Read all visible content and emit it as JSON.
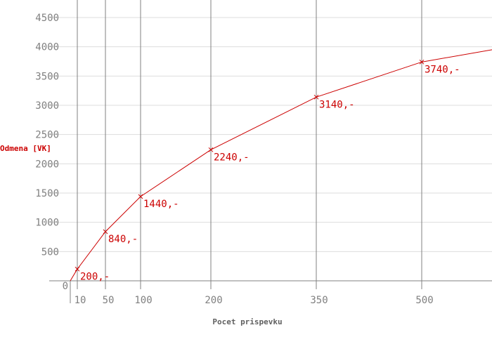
{
  "chart_data": {
    "type": "line",
    "title": "",
    "xlabel": "Pocet prispevku",
    "ylabel": "Odmena [VK]",
    "x_ticks": [
      "10",
      "50",
      "100",
      "200",
      "350",
      "500"
    ],
    "y_ticks": [
      "0",
      "500",
      "1000",
      "1500",
      "2000",
      "2500",
      "3000",
      "3500",
      "4000",
      "4500"
    ],
    "xlim": [
      0,
      600
    ],
    "ylim": [
      0,
      4800
    ],
    "grid": true,
    "series": [
      {
        "x": [
          0,
          10,
          50,
          100,
          200,
          350,
          500,
          600
        ],
        "y": [
          0,
          200,
          840,
          1440,
          2240,
          3140,
          3740,
          3950
        ],
        "color": "#cc0000"
      }
    ],
    "data_labels": [
      {
        "x": 10,
        "y": 200,
        "text": "200,-"
      },
      {
        "x": 50,
        "y": 840,
        "text": "840,-"
      },
      {
        "x": 100,
        "y": 1440,
        "text": "1440,-"
      },
      {
        "x": 200,
        "y": 2240,
        "text": "2240,-"
      },
      {
        "x": 350,
        "y": 3140,
        "text": "3140,-"
      },
      {
        "x": 500,
        "y": 3740,
        "text": "3740,-"
      }
    ],
    "colors": {
      "line": "#cc0000",
      "grid_horizontal": "#dddddd",
      "grid_vertical": "#808080",
      "tick_text": "#808080"
    }
  }
}
